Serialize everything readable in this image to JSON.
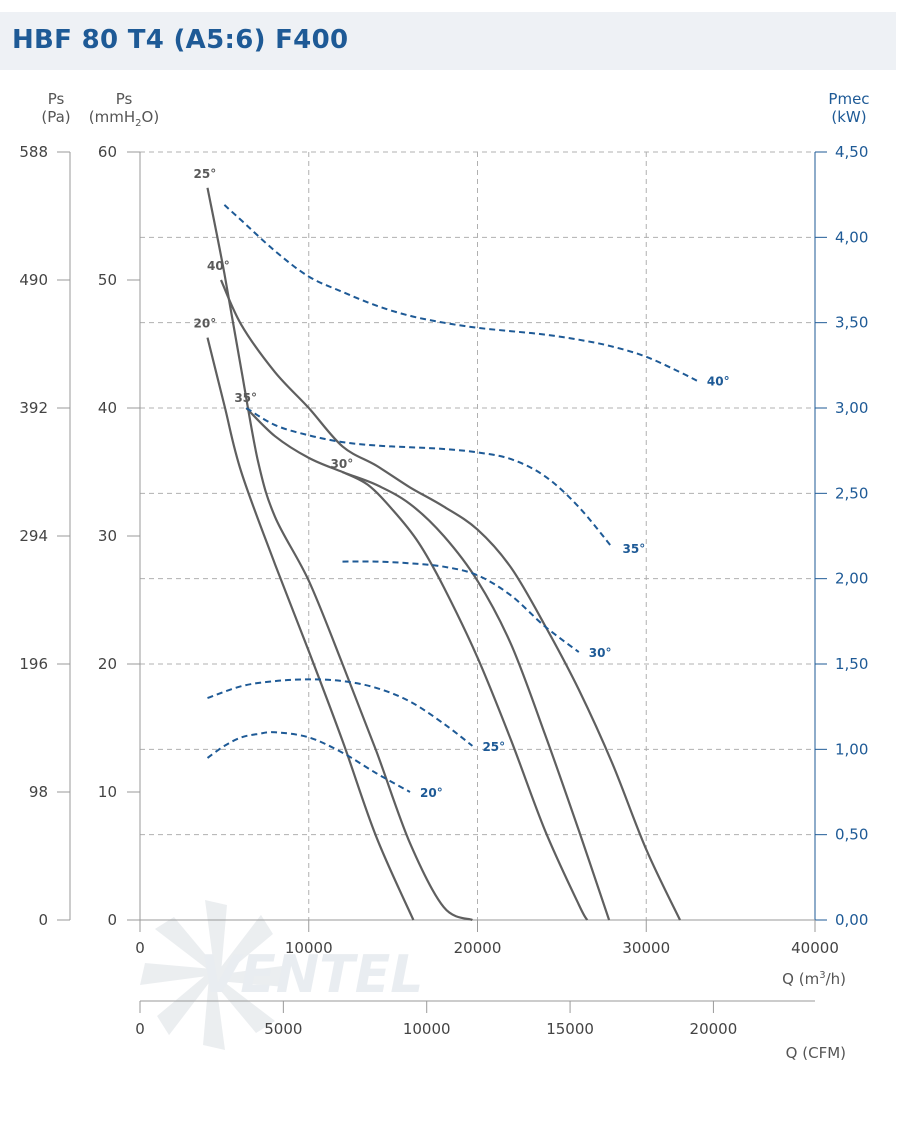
{
  "title": "HBF 80 T4 (A5:6) F400",
  "watermark": "VENTEL",
  "axes": {
    "left_pa_label": "Ps",
    "left_pa_unit": "(Pa)",
    "left_mm_label": "Ps",
    "left_mm_unit_pre": "(mmH",
    "left_mm_unit_sub": "2",
    "left_mm_unit_post": "O)",
    "right_label": "Pmec",
    "right_unit": "(kW)",
    "bottom_m3h_label_pre": "Q (m",
    "bottom_m3h_label_sup": "3",
    "bottom_m3h_label_post": "/h)",
    "bottom_cfm_label": "Q (CFM)",
    "pa_ticks": [
      "588",
      "490",
      "392",
      "294",
      "196",
      "98",
      "0"
    ],
    "mm_ticks": [
      "60",
      "50",
      "40",
      "30",
      "20",
      "10",
      "0"
    ],
    "kw_ticks": [
      "4,50",
      "4,00",
      "3,50",
      "3,00",
      "2,50",
      "2,00",
      "1,50",
      "1,00",
      "0,50",
      "0,00"
    ],
    "m3h_ticks": [
      "0",
      "10000",
      "20000",
      "30000",
      "40000"
    ],
    "cfm_ticks": [
      "0",
      "5000",
      "10000",
      "15000",
      "20000"
    ]
  },
  "colors": {
    "pressure_curve": "#5f5f5f",
    "power_curve": "#1e5a96",
    "grid": "#b0b0b0",
    "title": "#1e5a96"
  },
  "chart_data": {
    "type": "line",
    "title": "HBF 80 T4 (A5:6) F400",
    "x": {
      "label": "Q (m3/h)",
      "range": [
        0,
        40000
      ],
      "ticks": [
        0,
        10000,
        20000,
        30000,
        40000
      ]
    },
    "x2": {
      "label": "Q (CFM)",
      "range": [
        0,
        23543
      ],
      "ticks": [
        0,
        5000,
        10000,
        15000,
        20000
      ]
    },
    "y": {
      "label": "Ps (mmH2O)",
      "range": [
        0,
        60
      ],
      "ticks": [
        0,
        10,
        20,
        30,
        40,
        50,
        60
      ]
    },
    "y_pa": {
      "label": "Ps (Pa)",
      "range": [
        0,
        588
      ],
      "ticks": [
        0,
        98,
        196,
        294,
        392,
        490,
        588
      ]
    },
    "y2": {
      "label": "Pmec (kW)",
      "range": [
        0,
        4.5
      ],
      "ticks": [
        0,
        0.5,
        1.0,
        1.5,
        2.0,
        2.5,
        3.0,
        3.5,
        4.0,
        4.5
      ]
    },
    "grid": true,
    "pressure_series": [
      {
        "name": "20°",
        "points": [
          [
            4000,
            45.5
          ],
          [
            5000,
            40.2
          ],
          [
            6000,
            35.0
          ],
          [
            8000,
            27.8
          ],
          [
            10000,
            21.0
          ],
          [
            12000,
            14.0
          ],
          [
            14000,
            6.5
          ],
          [
            16200,
            0
          ]
        ]
      },
      {
        "name": "25°",
        "points": [
          [
            4000,
            57.2
          ],
          [
            5000,
            50.5
          ],
          [
            6000,
            43.0
          ],
          [
            7000,
            35.8
          ],
          [
            8000,
            31.5
          ],
          [
            10000,
            26.5
          ],
          [
            12000,
            20.0
          ],
          [
            14000,
            13.2
          ],
          [
            16000,
            6.0
          ],
          [
            18000,
            1.0
          ],
          [
            19700,
            0
          ]
        ]
      },
      {
        "name": "40°",
        "points": [
          [
            4800,
            50.0
          ],
          [
            6000,
            46.5
          ],
          [
            8000,
            42.8
          ],
          [
            10000,
            40.0
          ],
          [
            12000,
            37.0
          ],
          [
            14000,
            35.5
          ],
          [
            16000,
            33.8
          ],
          [
            18000,
            32.3
          ],
          [
            20000,
            30.5
          ],
          [
            22000,
            27.5
          ],
          [
            24000,
            23.0
          ],
          [
            26000,
            18.0
          ],
          [
            28000,
            12.2
          ],
          [
            30000,
            5.5
          ],
          [
            32000,
            0
          ]
        ]
      },
      {
        "name": "35°",
        "points": [
          [
            6300,
            40.0
          ],
          [
            8000,
            37.8
          ],
          [
            10000,
            36.1
          ],
          [
            12000,
            35.0
          ],
          [
            14000,
            34.0
          ],
          [
            16000,
            32.5
          ],
          [
            18000,
            30.0
          ],
          [
            20000,
            26.5
          ],
          [
            22000,
            21.5
          ],
          [
            24000,
            14.5
          ],
          [
            26000,
            7.0
          ],
          [
            27800,
            0
          ]
        ]
      },
      {
        "name": "30°",
        "points": [
          [
            12000,
            35.0
          ],
          [
            13500,
            34.0
          ],
          [
            15000,
            32.0
          ],
          [
            16500,
            29.5
          ],
          [
            18000,
            26.0
          ],
          [
            20000,
            20.5
          ],
          [
            22000,
            14.0
          ],
          [
            24000,
            7.0
          ],
          [
            26000,
            1.2
          ],
          [
            26500,
            0
          ]
        ]
      }
    ],
    "power_series": [
      {
        "name": "20°",
        "points": [
          [
            4000,
            0.95
          ],
          [
            5000,
            1.02
          ],
          [
            6000,
            1.07
          ],
          [
            7000,
            1.09
          ],
          [
            8000,
            1.1
          ],
          [
            10000,
            1.07
          ],
          [
            12000,
            0.98
          ],
          [
            14000,
            0.86
          ],
          [
            16000,
            0.75
          ]
        ]
      },
      {
        "name": "25°",
        "points": [
          [
            4000,
            1.3
          ],
          [
            6000,
            1.37
          ],
          [
            8000,
            1.4
          ],
          [
            10000,
            1.41
          ],
          [
            12000,
            1.4
          ],
          [
            14000,
            1.36
          ],
          [
            16000,
            1.28
          ],
          [
            18000,
            1.15
          ],
          [
            19700,
            1.02
          ]
        ]
      },
      {
        "name": "30°",
        "points": [
          [
            12000,
            2.1
          ],
          [
            14000,
            2.1
          ],
          [
            16000,
            2.09
          ],
          [
            18000,
            2.07
          ],
          [
            20000,
            2.02
          ],
          [
            22000,
            1.9
          ],
          [
            24000,
            1.72
          ],
          [
            26000,
            1.57
          ]
        ]
      },
      {
        "name": "35°",
        "points": [
          [
            6300,
            3.0
          ],
          [
            8000,
            2.9
          ],
          [
            10000,
            2.84
          ],
          [
            12000,
            2.8
          ],
          [
            14000,
            2.78
          ],
          [
            16000,
            2.77
          ],
          [
            18000,
            2.76
          ],
          [
            20000,
            2.74
          ],
          [
            22000,
            2.7
          ],
          [
            24000,
            2.6
          ],
          [
            26000,
            2.42
          ],
          [
            28000,
            2.18
          ]
        ]
      },
      {
        "name": "40°",
        "points": [
          [
            5000,
            4.19
          ],
          [
            6000,
            4.1
          ],
          [
            8000,
            3.92
          ],
          [
            10000,
            3.77
          ],
          [
            12000,
            3.68
          ],
          [
            14000,
            3.6
          ],
          [
            16000,
            3.54
          ],
          [
            18000,
            3.5
          ],
          [
            20000,
            3.47
          ],
          [
            22000,
            3.45
          ],
          [
            24000,
            3.43
          ],
          [
            26000,
            3.4
          ],
          [
            28000,
            3.36
          ],
          [
            30000,
            3.3
          ],
          [
            32000,
            3.21
          ],
          [
            33000,
            3.16
          ]
        ]
      }
    ]
  }
}
